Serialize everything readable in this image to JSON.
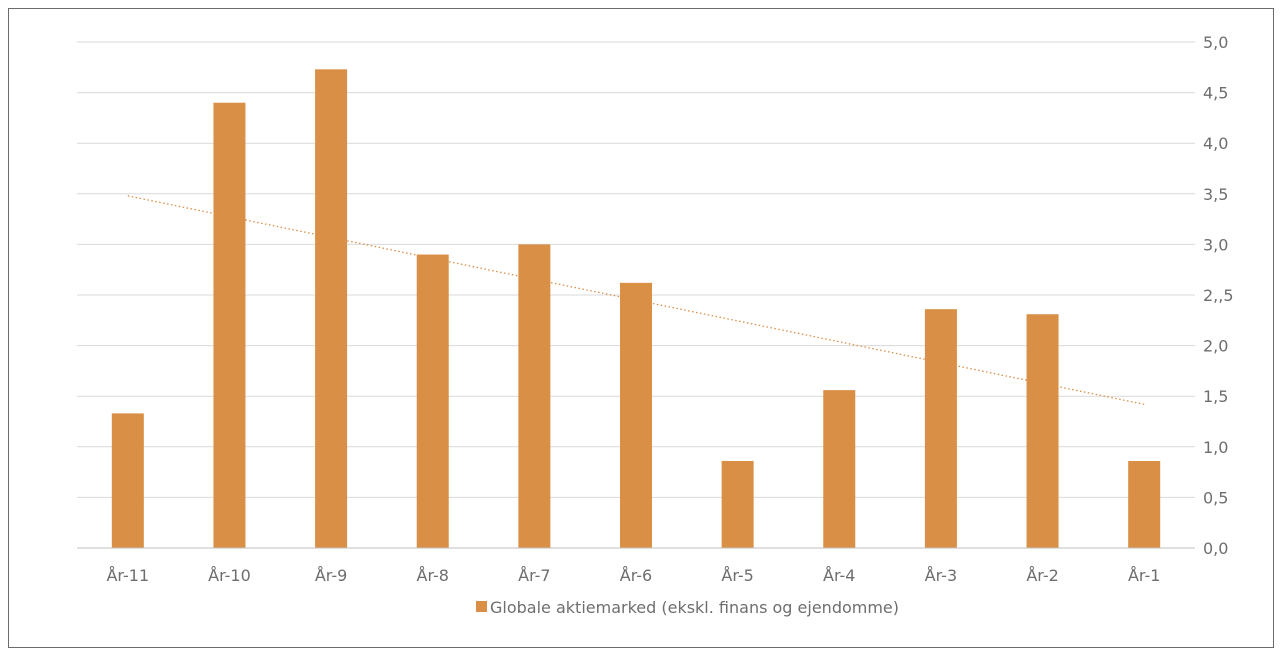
{
  "chart_data": {
    "type": "bar",
    "categories": [
      "År-11",
      "År-10",
      "År-9",
      "År-8",
      "År-7",
      "År-6",
      "År-5",
      "År-4",
      "År-3",
      "År-2",
      "År-1"
    ],
    "series": [
      {
        "name": "Globale aktiemarked (ekskl. finans og ejendomme)",
        "values": [
          1.33,
          4.4,
          4.73,
          2.9,
          3.0,
          2.62,
          0.86,
          1.56,
          2.36,
          2.31,
          0.86
        ],
        "color": "#d98f45"
      }
    ],
    "trendline": {
      "type": "linear",
      "style": "dotted",
      "color": "#d98f45",
      "start": 3.48,
      "end": 1.42
    },
    "y_ticks": [
      "0,0",
      "0,5",
      "1,0",
      "1,5",
      "2,0",
      "2,,5",
      "3,0",
      "3,5",
      "4,0",
      "4,5",
      "5,0"
    ],
    "ylim": [
      0,
      5
    ],
    "y_axis_side": "right",
    "grid": true,
    "legend_position": "bottom",
    "title": "",
    "xlabel": "",
    "ylabel": ""
  }
}
